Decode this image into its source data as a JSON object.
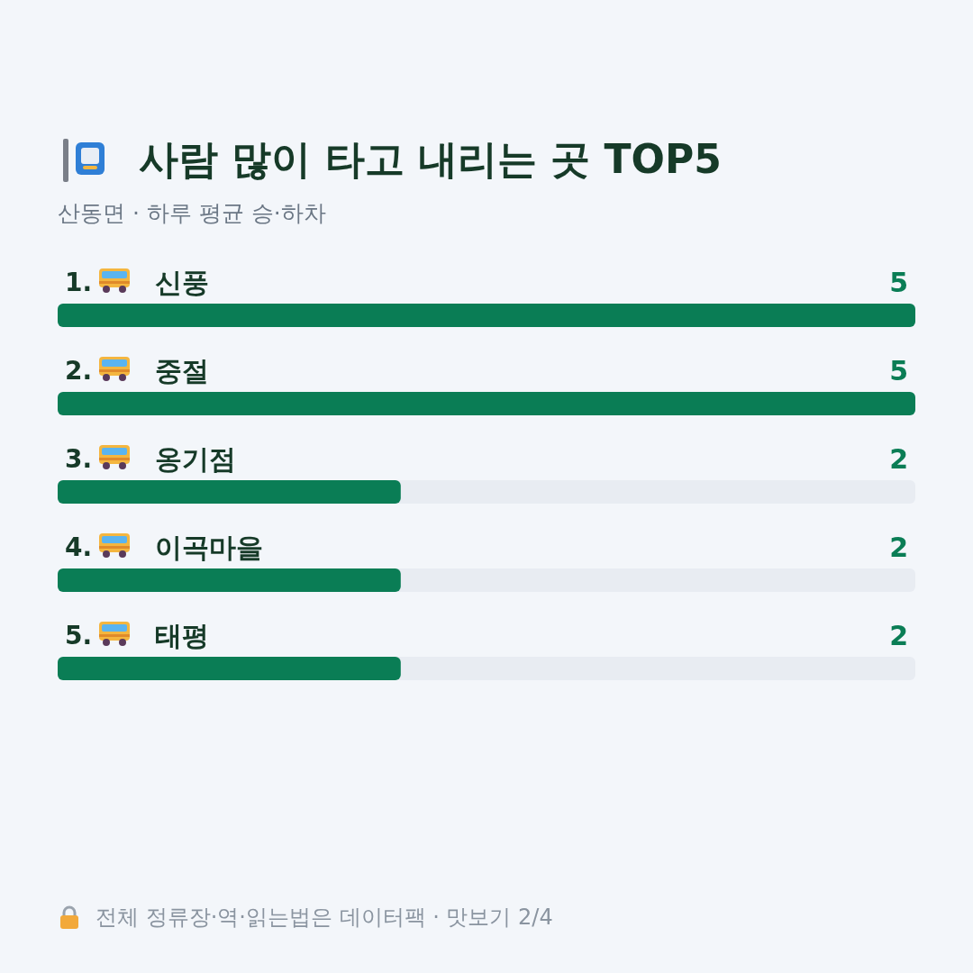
{
  "chart_data": {
    "type": "bar",
    "orientation": "horizontal",
    "title": "사람 많이 타고 내리는 곳 TOP5",
    "subtitle": "산동면 · 하루 평균 승·하차",
    "categories": [
      "1. 신풍",
      "2. 중절",
      "3. 옹기점",
      "4. 이곡마을",
      "5. 태평"
    ],
    "values": [
      5,
      5,
      2,
      2,
      2
    ],
    "color": "#0a7d55",
    "xlim": [
      0,
      5
    ],
    "data_labels": true,
    "tick_labels": "y",
    "grid": false,
    "annotations": [
      "전체 정류장·역·읽는법은 데이터팩 · 맛보기 2/4"
    ]
  }
}
